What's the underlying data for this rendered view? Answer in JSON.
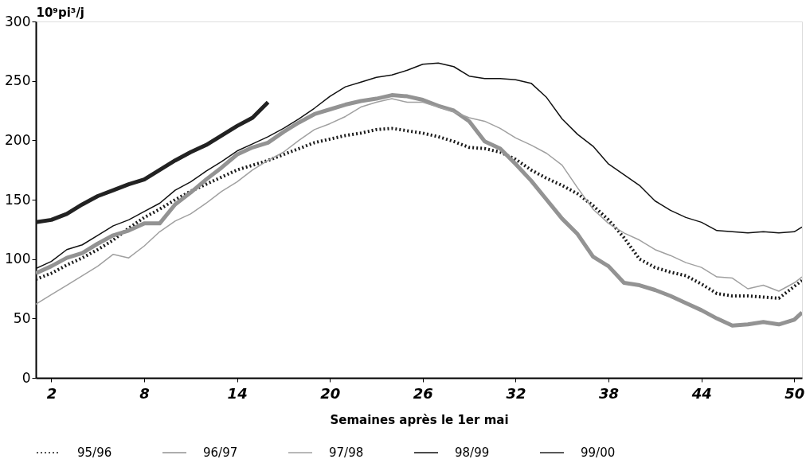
{
  "chart_data": {
    "type": "line",
    "xlabel": "Semaines après le 1er mai",
    "ylabel": "10⁹pi³/j",
    "xlim": [
      1,
      50.5
    ],
    "xticks": [
      2,
      8,
      14,
      20,
      26,
      32,
      38,
      44,
      50
    ],
    "ylim": [
      0,
      300
    ],
    "yticks": [
      0,
      50,
      100,
      150,
      200,
      250,
      300
    ],
    "grid": false,
    "legend": "bottom",
    "marker": "none",
    "x": [
      1,
      2,
      3,
      4,
      5,
      6,
      7,
      8,
      9,
      10,
      11,
      12,
      13,
      14,
      15,
      16,
      17,
      18,
      19,
      20,
      21,
      22,
      23,
      24,
      25,
      26,
      27,
      28,
      29,
      30,
      31,
      32,
      33,
      34,
      35,
      36,
      37,
      38,
      39,
      40,
      41,
      42,
      43,
      44,
      45,
      46,
      47,
      48,
      49,
      50,
      50.5
    ],
    "series": [
      {
        "name": "95/96",
        "color": "#1a1a1a",
        "line_style": "dotted",
        "values": [
          83,
          88,
          95,
          101,
          108,
          116,
          126,
          135,
          142,
          150,
          157,
          163,
          169,
          175,
          179,
          183,
          188,
          193,
          198,
          201,
          204,
          206,
          209,
          210,
          208,
          206,
          203,
          199,
          194,
          193,
          190,
          184,
          175,
          168,
          162,
          155,
          145,
          133,
          118,
          100,
          93,
          89,
          86,
          79,
          71,
          69,
          69,
          68,
          67,
          77,
          82
        ]
      },
      {
        "name": "96/97",
        "color": "#939393",
        "line_style": "solid",
        "values": [
          88,
          94,
          101,
          105,
          113,
          120,
          124,
          130,
          130,
          146,
          156,
          167,
          177,
          188,
          194,
          198,
          207,
          215,
          222,
          226,
          230,
          233,
          235,
          238,
          237,
          234,
          229,
          225,
          216,
          199,
          193,
          180,
          166,
          150,
          134,
          121,
          102,
          94,
          80,
          78,
          74,
          69,
          63,
          57,
          50,
          44,
          45,
          47,
          45,
          49,
          55
        ]
      },
      {
        "name": "97/98",
        "color": "#a0a0a0",
        "line_style": "solid",
        "values": [
          62,
          70,
          78,
          86,
          94,
          104,
          101,
          111,
          123,
          132,
          138,
          147,
          157,
          165,
          175,
          183,
          190,
          200,
          209,
          214,
          220,
          228,
          232,
          235,
          232,
          232,
          228,
          224,
          219,
          216,
          210,
          202,
          196,
          189,
          179,
          160,
          142,
          130,
          122,
          116,
          108,
          103,
          97,
          93,
          85,
          84,
          75,
          78,
          73,
          80,
          85
        ]
      },
      {
        "name": "98/99",
        "color": "#111111",
        "line_style": "solid",
        "values": [
          92,
          98,
          108,
          112,
          120,
          128,
          133,
          140,
          147,
          158,
          165,
          174,
          182,
          191,
          197,
          203,
          210,
          218,
          227,
          237,
          245,
          249,
          253,
          255,
          259,
          264,
          265,
          262,
          254,
          252,
          252,
          251,
          248,
          236,
          218,
          205,
          195,
          180,
          171,
          162,
          149,
          141,
          135,
          131,
          124,
          123,
          122,
          123,
          122,
          123,
          127
        ]
      },
      {
        "name": "99/00",
        "color": "#222222",
        "line_style": "solid",
        "values": [
          131,
          133,
          138,
          146,
          153,
          158,
          163,
          167,
          175,
          183,
          190,
          196,
          204,
          212,
          219,
          232,
          null,
          null,
          null,
          null,
          null,
          null,
          null,
          null,
          null,
          null,
          null,
          null,
          null,
          null,
          null,
          null,
          null,
          null,
          null,
          null,
          null,
          null,
          null,
          null,
          null,
          null,
          null,
          null,
          null,
          null,
          null,
          null,
          null,
          null,
          null
        ]
      }
    ]
  }
}
